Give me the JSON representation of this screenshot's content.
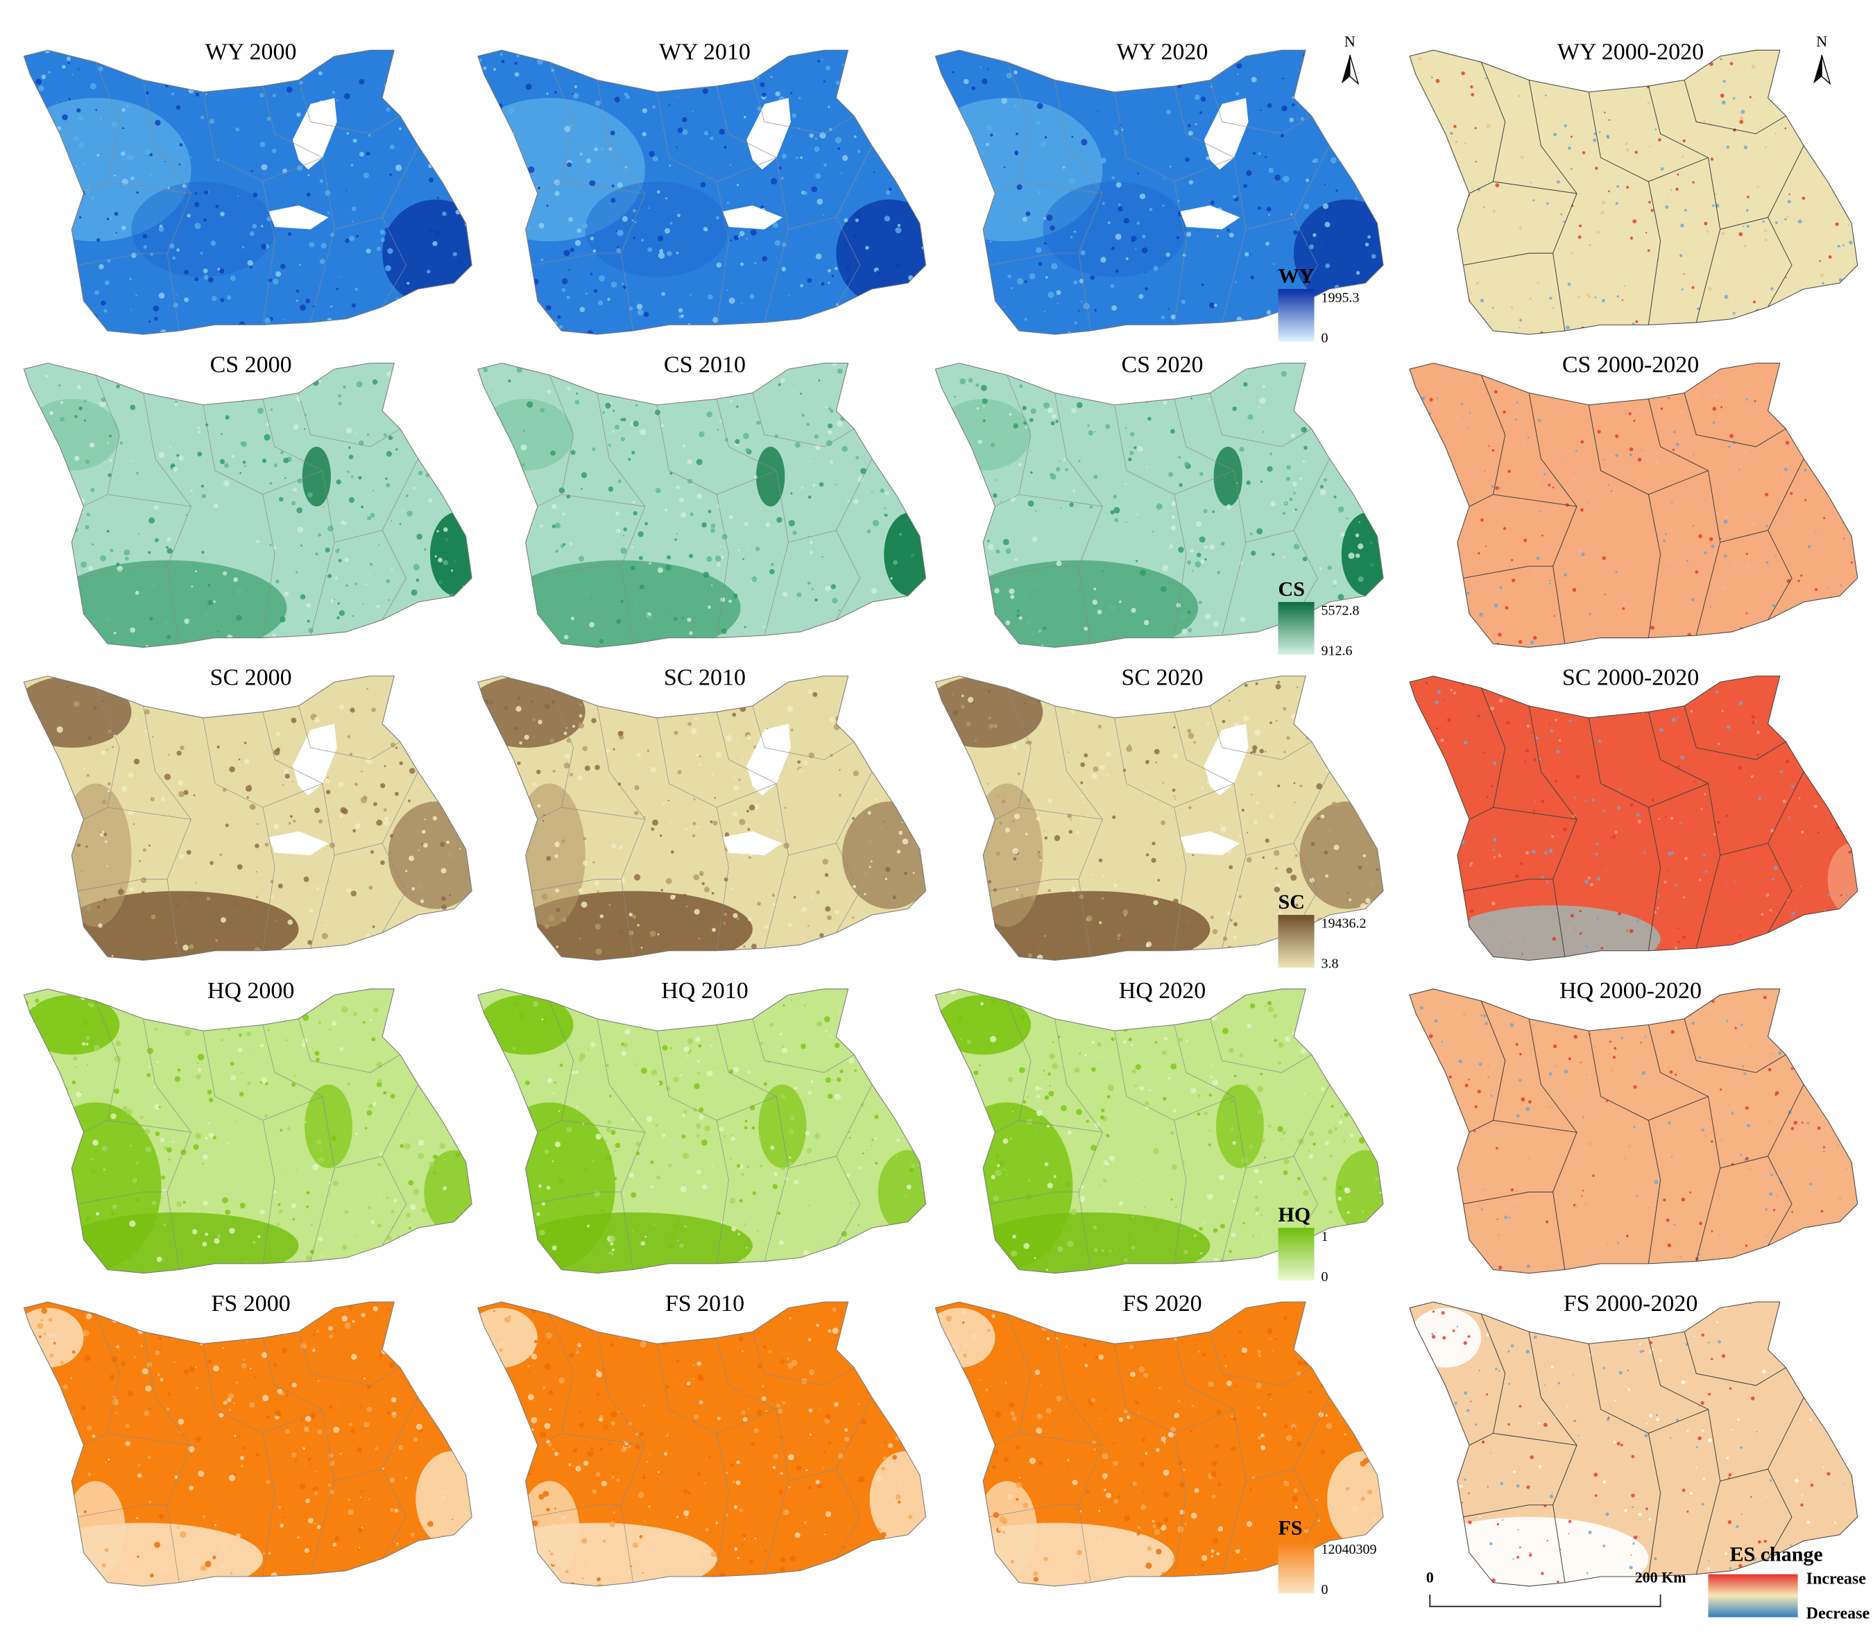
{
  "rows": [
    {
      "panels": [
        "WY 2000",
        "WY 2010",
        "WY 2020",
        "WY 2000-2020"
      ],
      "legend": {
        "title": "WY",
        "max": "1995.3",
        "min": "0"
      }
    },
    {
      "panels": [
        "CS 2000",
        "CS 2010",
        "CS 2020",
        "CS 2000-2020"
      ],
      "legend": {
        "title": "CS",
        "max": "5572.8",
        "min": "912.6"
      }
    },
    {
      "panels": [
        "SC 2000",
        "SC 2010",
        "SC 2020",
        "SC 2000-2020"
      ],
      "legend": {
        "title": "SC",
        "max": "19436.2",
        "min": "3.8"
      }
    },
    {
      "panels": [
        "HQ 2000",
        "HQ 2010",
        "HQ 2020",
        "HQ 2000-2020"
      ],
      "legend": {
        "title": "HQ",
        "max": "1",
        "min": "0"
      }
    },
    {
      "panels": [
        "FS 2000",
        "FS 2010",
        "FS 2020",
        "FS 2000-2020"
      ],
      "legend": {
        "title": "FS",
        "max": "12040309",
        "min": "0"
      }
    }
  ],
  "north_label": "N",
  "es_legend": {
    "title": "ES change",
    "high": "Increase",
    "low": "Decrease"
  },
  "scale_bar": {
    "start": "0",
    "end": "200 Km"
  }
}
